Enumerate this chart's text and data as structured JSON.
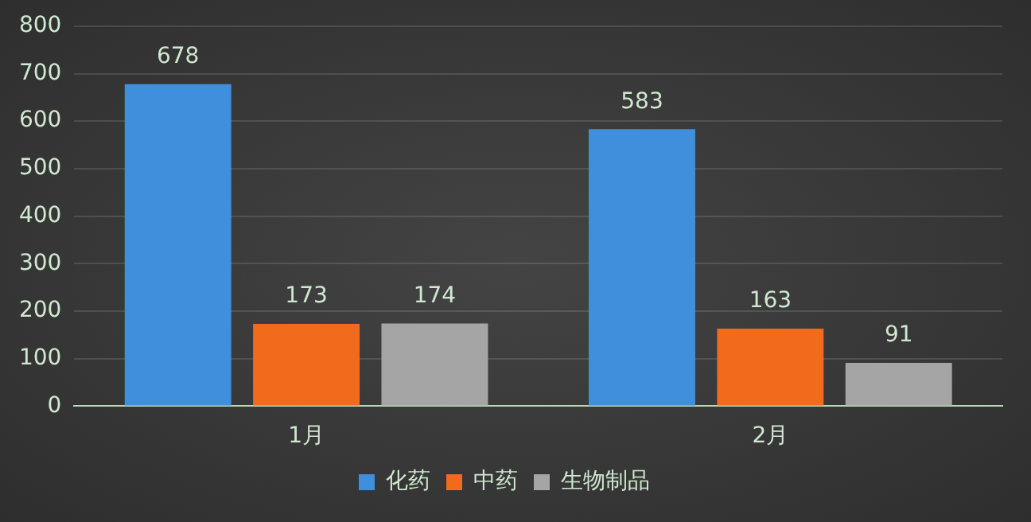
{
  "chart_data": {
    "type": "bar",
    "categories": [
      "1月",
      "2月"
    ],
    "series": [
      {
        "name": "化药",
        "color": "#3f8fdc",
        "values": [
          678,
          583
        ]
      },
      {
        "name": "中药",
        "color": "#f26a1b",
        "values": [
          173,
          163
        ]
      },
      {
        "name": "生物制品",
        "color": "#a5a5a5",
        "values": [
          174,
          91
        ]
      }
    ],
    "ylim": [
      0,
      800
    ],
    "yticks": [
      0,
      100,
      200,
      300,
      400,
      500,
      600,
      700,
      800
    ],
    "grid": "y",
    "legend": "bottom",
    "data_labels": true
  }
}
